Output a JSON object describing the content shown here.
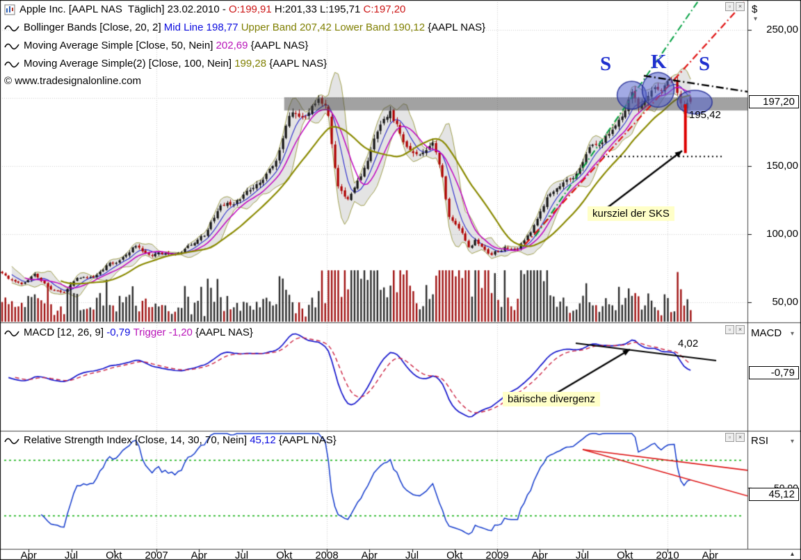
{
  "meta": {
    "copyright": "© www.tradesignalonline.com"
  },
  "title_bar": {
    "instrument": "Apple Inc. [AAPL NAS  Täglich] 23.02.2010 - ",
    "open": "O:199,91 ",
    "highlow": "H:201,33 L:195,71 ",
    "close": "C:197,20"
  },
  "legends": {
    "bollinger": {
      "name": "Bollinger Bands [Close, 20, 2] ",
      "mid": "Mid Line 198,77 ",
      "upper_lower": "Upper Band 207,42 Lower Band 190,12 ",
      "symbol": "{AAPL NAS}"
    },
    "ma50": {
      "name": "Moving Average Simple [Close, 50, Nein] ",
      "value": "202,69 ",
      "symbol": "{AAPL NAS}"
    },
    "ma100": {
      "name": "Moving Average Simple(2) [Close, 100, Nein] ",
      "value": "199,28 ",
      "symbol": "{AAPL NAS}"
    },
    "macd": {
      "name": "MACD [12, 26, 9] ",
      "value": "-0,79 ",
      "trigger": "Trigger -1,20 ",
      "symbol": "{AAPL NAS}"
    },
    "rsi": {
      "name": "Relative Strength Index [Close, 14, 30, 70, Nein] ",
      "value": "45,12 ",
      "symbol": "{AAPL NAS}"
    }
  },
  "axis": {
    "currency": "$",
    "price_badge": "197,20",
    "macd_label": "MACD",
    "macd_badge": "-0,79",
    "rsi_label": "RSI",
    "rsi_mid_label": "50,00",
    "rsi_badge": "45,12"
  },
  "annotations": {
    "s_left": "S",
    "k": "K",
    "s_right": "S",
    "neckline_break": "195,42",
    "target_label": "kursziel der SKS",
    "macd_peak": "4,02",
    "divergence_label": "bärische divergenz"
  },
  "icons": {
    "restore": "▫",
    "close": "×",
    "dropdown": "▾",
    "scroll_up": "▴"
  },
  "chart_data": [
    {
      "type": "candlestick",
      "name": "Apple Inc.",
      "symbol": "AAPL NAS",
      "interval": "Täglich",
      "last_date": "23.02.2010",
      "ohlc": {
        "open": 199.91,
        "high": 201.33,
        "low": 195.71,
        "close": 197.2
      },
      "indicators": {
        "bollinger": {
          "period": 20,
          "stddev": 2,
          "mid": 198.77,
          "upper": 207.42,
          "lower": 190.12
        },
        "sma50": 202.69,
        "sma100": 199.28
      },
      "ylim": [
        33,
        272
      ],
      "y_ticks": [
        [
          "250,00",
          250
        ],
        [
          "150,00",
          150
        ],
        [
          "100,00",
          100
        ],
        [
          "50,00",
          50
        ]
      ],
      "y_grid": [
        250,
        200,
        150,
        100,
        50
      ],
      "x_ticks": [
        [
          "Apr",
          2006.25
        ],
        [
          "Jul",
          2006.5
        ],
        [
          "Okt",
          2006.75
        ],
        [
          "2007",
          2007
        ],
        [
          "Apr",
          2007.25
        ],
        [
          "Jul",
          2007.5
        ],
        [
          "Okt",
          2007.75
        ],
        [
          "2008",
          2008
        ],
        [
          "Apr",
          2008.25
        ],
        [
          "Jul",
          2008.5
        ],
        [
          "Okt",
          2008.75
        ],
        [
          "2009",
          2009
        ],
        [
          "Apr",
          2009.25
        ],
        [
          "Jul",
          2009.5
        ],
        [
          "Okt",
          2009.75
        ],
        [
          "2010",
          2010
        ],
        [
          "Apr",
          2010.25
        ]
      ],
      "volume_shown": true,
      "monthly_closes": [
        [
          2006.04,
          76
        ],
        [
          2006.12,
          68.5
        ],
        [
          2006.21,
          62.7
        ],
        [
          2006.29,
          70.4
        ],
        [
          2006.37,
          59.8
        ],
        [
          2006.46,
          57.3
        ],
        [
          2006.54,
          67.9
        ],
        [
          2006.62,
          68.4
        ],
        [
          2006.71,
          77.0
        ],
        [
          2006.79,
          81.1
        ],
        [
          2006.87,
          91.7
        ],
        [
          2006.96,
          84.8
        ],
        [
          2007.04,
          85.7
        ],
        [
          2007.12,
          84.6
        ],
        [
          2007.21,
          92.9
        ],
        [
          2007.29,
          99.8
        ],
        [
          2007.37,
          121.2
        ],
        [
          2007.46,
          122.0
        ],
        [
          2007.54,
          131.8
        ],
        [
          2007.62,
          138.5
        ],
        [
          2007.71,
          153.5
        ],
        [
          2007.79,
          189.9
        ],
        [
          2007.87,
          182.2
        ],
        [
          2007.94,
          198.1
        ],
        [
          2008.0,
          196
        ],
        [
          2008.06,
          135.4
        ],
        [
          2008.12,
          125.0
        ],
        [
          2008.21,
          143.5
        ],
        [
          2008.29,
          173.9
        ],
        [
          2008.37,
          188.8
        ],
        [
          2008.46,
          167.4
        ],
        [
          2008.54,
          158.9
        ],
        [
          2008.62,
          169.5
        ],
        [
          2008.68,
          142
        ],
        [
          2008.71,
          113.7
        ],
        [
          2008.79,
          100
        ],
        [
          2008.84,
          88
        ],
        [
          2008.87,
          95
        ],
        [
          2008.96,
          85.4
        ],
        [
          2009.04,
          90.1
        ],
        [
          2009.12,
          89.3
        ],
        [
          2009.21,
          105.1
        ],
        [
          2009.29,
          125.8
        ],
        [
          2009.37,
          135.8
        ],
        [
          2009.46,
          142.4
        ],
        [
          2009.54,
          163.4
        ],
        [
          2009.62,
          168.2
        ],
        [
          2009.71,
          185.3
        ],
        [
          2009.75,
          190
        ],
        [
          2009.79,
          205
        ],
        [
          2009.83,
          193
        ],
        [
          2009.88,
          200
        ],
        [
          2009.92,
          209
        ],
        [
          2009.96,
          205
        ],
        [
          2010.0,
          212
        ],
        [
          2010.04,
          214.5
        ],
        [
          2010.07,
          199
        ],
        [
          2010.1,
          192
        ],
        [
          2010.125,
          199
        ],
        [
          2010.145,
          197.2
        ]
      ],
      "annotations": {
        "neckline_zone": {
          "price_top": 200.5,
          "price_bottom": 190.8,
          "x_start_t": 2007.75
        },
        "head_shoulders": {
          "left_t": 2009.79,
          "head_t": 2009.945,
          "right_t": 2010.16,
          "left_price": 202,
          "head_price": 206,
          "right_price": 197
        },
        "sks_target": {
          "break_price": 195.42,
          "target_price": 157,
          "line_x_t": 2010.105
        }
      }
    },
    {
      "type": "line",
      "name": "MACD",
      "params": [
        12,
        26,
        9
      ],
      "value": -0.79,
      "trigger": -1.2,
      "peak_annotation": 4.02,
      "ylim": [
        -9,
        6
      ]
    },
    {
      "type": "line",
      "name": "RSI",
      "params": {
        "length": 14,
        "lower": 30,
        "upper": 70
      },
      "value": 45.12,
      "bands": [
        30,
        70
      ],
      "ylim": [
        0,
        100
      ]
    }
  ]
}
